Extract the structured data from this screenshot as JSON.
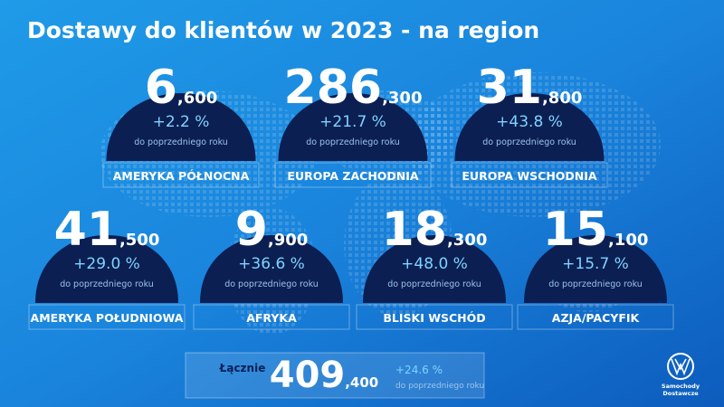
{
  "title": "Dostawy do klientów w 2023 - na region",
  "regions": [
    {
      "big": "6",
      "small": ",600",
      "change": "+2.2 %",
      "note": "do poprzedniego roku",
      "label": "AMERYKA PÓŁNOCNA"
    },
    {
      "big": "286",
      "small": ",300",
      "change": "+21.7 %",
      "note": "do poprzedniego roku",
      "label": "EUROPA ZACHODNIA"
    },
    {
      "big": "31",
      "small": ",800",
      "change": "+43.8 %",
      "note": "do poprzedniego roku",
      "label": "EUROPA WSCHODNIA"
    },
    {
      "big": "41",
      "small": ",500",
      "change": "+29.0 %",
      "note": "do poprzedniego roku",
      "label": "AMERYKA POŁUDNIOWA"
    },
    {
      "big": "9",
      "small": ",900",
      "change": "+36.6 %",
      "note": "do poprzedniego roku",
      "label": "AFRYKA"
    },
    {
      "big": "18",
      "small": ",300",
      "change": "+48.0 %",
      "note": "do poprzedniego roku",
      "label": "BLISKI WSCHÓD"
    },
    {
      "big": "15",
      "small": ",100",
      "change": "+15.7 %",
      "note": "do poprzedniego roku",
      "label": "AZJA/PACYFIK"
    }
  ],
  "total": {
    "label": "Łącznie",
    "big": "409",
    "small": ",400",
    "change": "+24.6 %",
    "note": "do poprzedniego roku"
  },
  "logo": {
    "lines": [
      "Samochody",
      "Dostawcze"
    ]
  }
}
